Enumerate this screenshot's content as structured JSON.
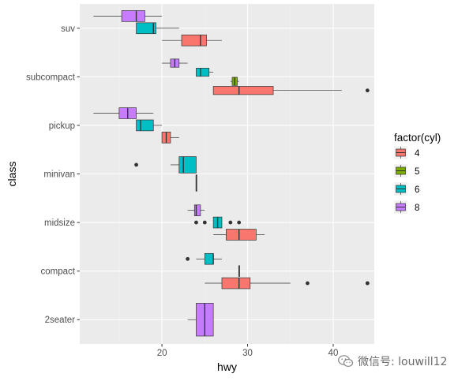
{
  "chart_data": {
    "type": "boxplot",
    "orientation": "horizontal",
    "title": "",
    "xlabel": "hwy",
    "ylabel": "class",
    "xlim": [
      10.4,
      44.8
    ],
    "x_ticks": [
      20,
      30,
      40
    ],
    "categories": [
      "2seater",
      "compact",
      "midsize",
      "minivan",
      "pickup",
      "subcompact",
      "suv"
    ],
    "legend": {
      "title": "factor(cyl)",
      "position": "right",
      "entries": [
        {
          "label": "4",
          "color": "#F8766D"
        },
        {
          "label": "5",
          "color": "#7CAE00"
        },
        {
          "label": "6",
          "color": "#00BFC4"
        },
        {
          "label": "8",
          "color": "#C77CFF"
        }
      ]
    },
    "groups": {
      "2seater": [
        "8"
      ],
      "compact": [
        "4",
        "5",
        "6"
      ],
      "midsize": [
        "4",
        "6",
        "8"
      ],
      "minivan": [
        "4",
        "6"
      ],
      "pickup": [
        "4",
        "6",
        "8"
      ],
      "subcompact": [
        "4",
        "5",
        "6",
        "8"
      ],
      "suv": [
        "4",
        "6",
        "8"
      ]
    },
    "boxes": [
      {
        "class": "2seater",
        "cyl": "8",
        "lower_whisker": 23,
        "q1": 24,
        "median": 25,
        "q3": 26,
        "upper_whisker": 26,
        "outliers": []
      },
      {
        "class": "compact",
        "cyl": "4",
        "lower_whisker": 25,
        "q1": 27,
        "median": 29,
        "q3": 30.3,
        "upper_whisker": 35,
        "outliers": [
          37,
          44,
          44
        ]
      },
      {
        "class": "compact",
        "cyl": "5",
        "lower_whisker": 29,
        "q1": 29,
        "median": 29,
        "q3": 29,
        "upper_whisker": 29,
        "outliers": []
      },
      {
        "class": "compact",
        "cyl": "6",
        "lower_whisker": 24,
        "q1": 25,
        "median": 26,
        "q3": 26,
        "upper_whisker": 27,
        "outliers": [
          23
        ]
      },
      {
        "class": "midsize",
        "cyl": "4",
        "lower_whisker": 26,
        "q1": 27.5,
        "median": 29,
        "q3": 31,
        "upper_whisker": 32,
        "outliers": []
      },
      {
        "class": "midsize",
        "cyl": "6",
        "lower_whisker": 26,
        "q1": 26,
        "median": 26.5,
        "q3": 27,
        "upper_whisker": 27,
        "outliers": [
          24,
          25,
          28,
          29
        ]
      },
      {
        "class": "midsize",
        "cyl": "8",
        "lower_whisker": 23,
        "q1": 23.8,
        "median": 24,
        "q3": 24.5,
        "upper_whisker": 25,
        "outliers": []
      },
      {
        "class": "minivan",
        "cyl": "4",
        "lower_whisker": 24,
        "q1": 24,
        "median": 24,
        "q3": 24,
        "upper_whisker": 24,
        "outliers": []
      },
      {
        "class": "minivan",
        "cyl": "6",
        "lower_whisker": 21,
        "q1": 22,
        "median": 22.5,
        "q3": 24,
        "upper_whisker": 24,
        "outliers": [
          17
        ]
      },
      {
        "class": "pickup",
        "cyl": "4",
        "lower_whisker": 20,
        "q1": 20,
        "median": 20.5,
        "q3": 21,
        "upper_whisker": 22,
        "outliers": []
      },
      {
        "class": "pickup",
        "cyl": "6",
        "lower_whisker": 17,
        "q1": 17,
        "median": 17.5,
        "q3": 19,
        "upper_whisker": 20,
        "outliers": []
      },
      {
        "class": "pickup",
        "cyl": "8",
        "lower_whisker": 12,
        "q1": 15,
        "median": 16,
        "q3": 17,
        "upper_whisker": 19,
        "outliers": []
      },
      {
        "class": "subcompact",
        "cyl": "4",
        "lower_whisker": 26,
        "q1": 26,
        "median": 29,
        "q3": 33,
        "upper_whisker": 41,
        "outliers": [
          44
        ]
      },
      {
        "class": "subcompact",
        "cyl": "5",
        "lower_whisker": 28,
        "q1": 28.2,
        "median": 28.5,
        "q3": 28.8,
        "upper_whisker": 29,
        "outliers": []
      },
      {
        "class": "subcompact",
        "cyl": "6",
        "lower_whisker": 24,
        "q1": 24,
        "median": 24.5,
        "q3": 25.5,
        "upper_whisker": 26,
        "outliers": []
      },
      {
        "class": "subcompact",
        "cyl": "8",
        "lower_whisker": 20,
        "q1": 21,
        "median": 21.5,
        "q3": 22,
        "upper_whisker": 23,
        "outliers": []
      },
      {
        "class": "suv",
        "cyl": "4",
        "lower_whisker": 20,
        "q1": 22.3,
        "median": 24.5,
        "q3": 25.2,
        "upper_whisker": 27,
        "outliers": []
      },
      {
        "class": "suv",
        "cyl": "6",
        "lower_whisker": 17,
        "q1": 17,
        "median": 19,
        "q3": 19.3,
        "upper_whisker": 22,
        "outliers": []
      },
      {
        "class": "suv",
        "cyl": "8",
        "lower_whisker": 12,
        "q1": 15.3,
        "median": 17,
        "q3": 18,
        "upper_whisker": 20,
        "outliers": []
      }
    ],
    "grid": true,
    "colors": {
      "panel": "#EBEBEB",
      "grid_major": "#FFFFFF",
      "grid_minor": "#F2F2F2",
      "outline": "#333333",
      "outlier": "#333333"
    }
  },
  "watermark": {
    "text": "微信号: louwill12",
    "icon": "wechat-icon"
  }
}
